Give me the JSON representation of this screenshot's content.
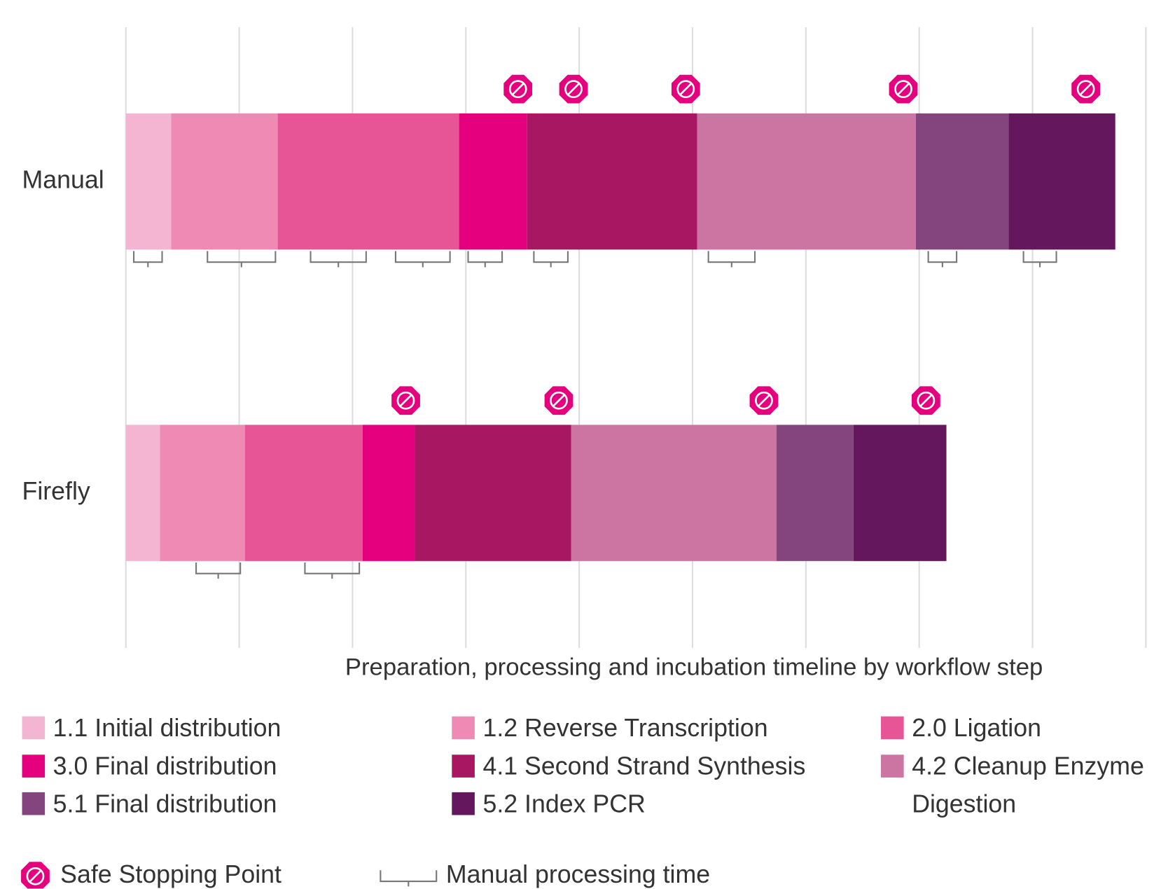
{
  "chart_data": {
    "type": "stacked-bar-horizontal",
    "categories": [
      "Manual",
      "Firefly"
    ],
    "xlabel": "Preparation, processing and incubation timeline by workflow step",
    "xlim": [
      0,
      9
    ],
    "xticks": [
      0,
      1,
      2,
      3,
      4,
      5,
      6,
      7,
      8,
      9
    ],
    "grid": true,
    "series": [
      {
        "name": "1.1 Initial distribution",
        "color": "#f4b5d3",
        "values": [
          0.4,
          0.3
        ]
      },
      {
        "name": "1.2 Reverse Transcription",
        "color": "#ee8ab4",
        "values": [
          0.94,
          0.75
        ]
      },
      {
        "name": "2.0 Ligation",
        "color": "#e85596",
        "values": [
          1.6,
          1.04
        ]
      },
      {
        "name": "3.0 Final distribution",
        "color": "#e5007e",
        "values": [
          0.6,
          0.46
        ]
      },
      {
        "name": "4.1 Second Strand Synthesis",
        "color": "#a71762",
        "values": [
          1.5,
          1.38
        ]
      },
      {
        "name": "4.2 Cleanup Enzyme Digestion",
        "color": "#cc74a2",
        "values": [
          1.93,
          1.81
        ]
      },
      {
        "name": "5.1 Final distribution",
        "color": "#84457e",
        "values": [
          0.82,
          0.68
        ]
      },
      {
        "name": "5.2 Index PCR",
        "color": "#64175c",
        "values": [
          0.94,
          0.82
        ]
      }
    ],
    "safe_stopping_points": [
      [
        3.46,
        3.95,
        4.94,
        6.86,
        8.47
      ],
      [
        2.47,
        3.82,
        5.63,
        7.06
      ]
    ],
    "manual_processing_times": [
      [
        [
          0.07,
          0.32
        ],
        [
          0.72,
          1.32
        ],
        [
          1.63,
          2.12
        ],
        [
          2.38,
          2.86
        ],
        [
          3.02,
          3.32
        ],
        [
          3.6,
          3.9
        ],
        [
          5.14,
          5.55
        ],
        [
          7.08,
          7.33
        ],
        [
          7.92,
          8.21
        ]
      ],
      [
        [
          0.62,
          1.01
        ],
        [
          1.58,
          2.06
        ]
      ]
    ],
    "safe_stopping_point_label": "Safe Stopping Point",
    "manual_processing_time_label": "Manual processing time"
  }
}
